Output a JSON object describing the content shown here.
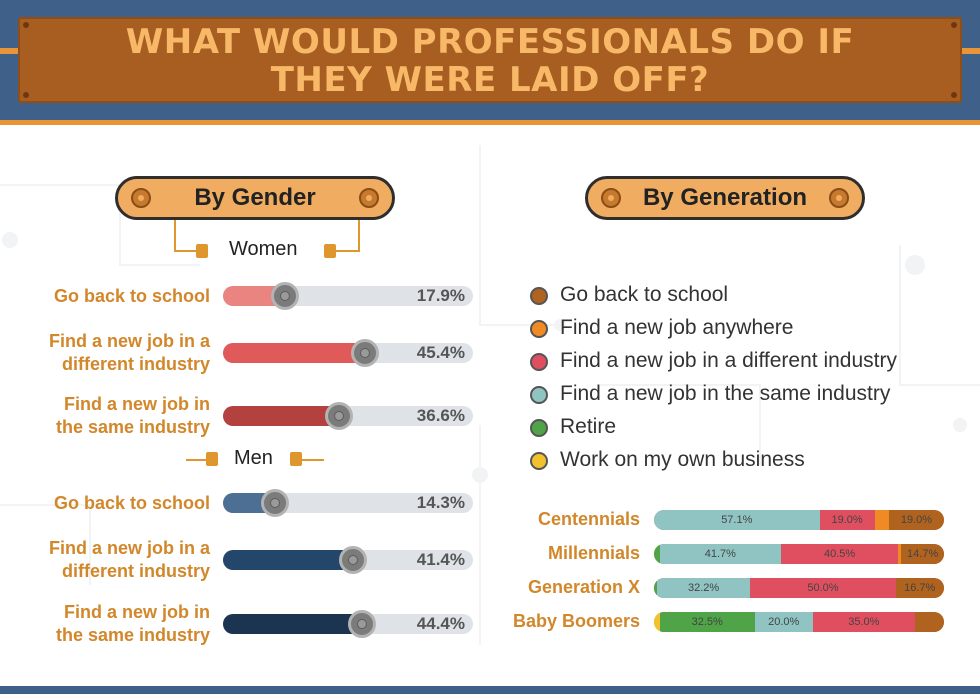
{
  "title": "WHAT WOULD PROFESSIONALS DO IF THEY WERE LAID OFF?",
  "title_lines": [
    "WHAT WOULD PROFESSIONALS DO IF",
    "THEY WERE LAID OFF?"
  ],
  "gender": {
    "heading": "By Gender",
    "groups": [
      {
        "name": "Women",
        "rows": [
          {
            "label_lines": [
              "Go back to school"
            ],
            "value": 17.9,
            "value_text": "17.9%",
            "color": "#e98480"
          },
          {
            "label_lines": [
              "Find a new job in a",
              "different industry"
            ],
            "value": 45.4,
            "value_text": "45.4%",
            "color": "#e05a5a"
          },
          {
            "label_lines": [
              "Find a new job in",
              "the same industry"
            ],
            "value": 36.6,
            "value_text": "36.6%",
            "color": "#b2413f"
          }
        ]
      },
      {
        "name": "Men",
        "rows": [
          {
            "label_lines": [
              "Go back to school"
            ],
            "value": 14.3,
            "value_text": "14.3%",
            "color": "#4d6f93"
          },
          {
            "label_lines": [
              "Find a new job in a",
              "different industry"
            ],
            "value": 41.4,
            "value_text": "41.4%",
            "color": "#24466b"
          },
          {
            "label_lines": [
              "Find a new job in",
              "the same industry"
            ],
            "value": 44.4,
            "value_text": "44.4%",
            "color": "#1d3450"
          }
        ]
      }
    ]
  },
  "generation": {
    "heading": "By Generation",
    "legend": [
      {
        "label": "Go back to school",
        "color": "#b0621f"
      },
      {
        "label": "Find a new job anywhere",
        "color": "#f08a24"
      },
      {
        "label": "Find a new job in a different industry",
        "color": "#e04f5f"
      },
      {
        "label": "Find a new job in the same industry",
        "color": "#8fc4c3"
      },
      {
        "label": "Retire",
        "color": "#4ea447"
      },
      {
        "label": "Work on my own business",
        "color": "#f2c12e"
      }
    ]
  },
  "chart_data": [
    {
      "type": "bar",
      "title": "By Gender",
      "categories": [
        "Go back to school",
        "Find a new job in a different industry",
        "Find a new job in the same industry"
      ],
      "series": [
        {
          "name": "Women",
          "values": [
            17.9,
            45.4,
            36.6
          ]
        },
        {
          "name": "Men",
          "values": [
            14.3,
            41.4,
            44.4
          ]
        }
      ],
      "ylim": [
        0,
        100
      ]
    },
    {
      "type": "bar",
      "stacked": true,
      "title": "By Generation",
      "categories": [
        "Centennials",
        "Millennials",
        "Generation X",
        "Baby Boomers"
      ],
      "series": [
        {
          "name": "Work on my own business",
          "values": [
            0,
            0,
            0,
            2
          ]
        },
        {
          "name": "Retire",
          "values": [
            0,
            2,
            1,
            32.5
          ]
        },
        {
          "name": "Find a new job in the same industry",
          "values": [
            57.1,
            41.7,
            32.2,
            20.0
          ]
        },
        {
          "name": "Find a new job in a different industry",
          "values": [
            19.0,
            40.5,
            50.0,
            35.0
          ]
        },
        {
          "name": "Find a new job anywhere",
          "values": [
            4.9,
            1,
            0,
            0
          ]
        },
        {
          "name": "Go back to school",
          "values": [
            19.0,
            14.7,
            16.7,
            10
          ]
        }
      ],
      "value_labels": {
        "Centennials": [
          "",
          "",
          "57.1%",
          "19.0%",
          "",
          "19.0%"
        ],
        "Millennials": [
          "",
          "",
          "41.7%",
          "40.5%",
          "",
          "14.7%"
        ],
        "Generation X": [
          "",
          "",
          "32.2%",
          "50.0%",
          "",
          "16.7%"
        ],
        "Baby Boomers": [
          "",
          "32.5%",
          "20.0%",
          "35.0%",
          "",
          ""
        ]
      },
      "ylim": [
        0,
        100
      ]
    }
  ]
}
